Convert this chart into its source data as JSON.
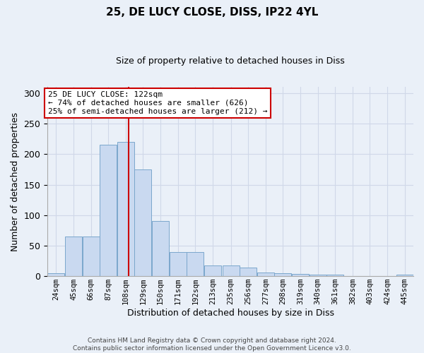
{
  "title1": "25, DE LUCY CLOSE, DISS, IP22 4YL",
  "title2": "Size of property relative to detached houses in Diss",
  "xlabel": "Distribution of detached houses by size in Diss",
  "ylabel": "Number of detached properties",
  "bin_labels": [
    "24sqm",
    "45sqm",
    "66sqm",
    "87sqm",
    "108sqm",
    "129sqm",
    "150sqm",
    "171sqm",
    "192sqm",
    "213sqm",
    "235sqm",
    "256sqm",
    "277sqm",
    "298sqm",
    "319sqm",
    "340sqm",
    "361sqm",
    "382sqm",
    "403sqm",
    "424sqm",
    "445sqm"
  ],
  "bin_values": [
    5,
    65,
    65,
    215,
    220,
    175,
    90,
    40,
    40,
    18,
    18,
    14,
    6,
    5,
    4,
    2,
    2,
    0,
    0,
    0,
    2
  ],
  "bar_color": "#c9d9f0",
  "bar_edge_color": "#7ba7cc",
  "grid_color": "#d0d8e8",
  "bg_color": "#eaf0f8",
  "property_line_x": 122,
  "property_line_color": "#cc0000",
  "annotation_text": "25 DE LUCY CLOSE: 122sqm\n← 74% of detached houses are smaller (626)\n25% of semi-detached houses are larger (212) →",
  "annotation_box_color": "#ffffff",
  "annotation_box_edge": "#cc0000",
  "ylim": [
    0,
    310
  ],
  "yticks": [
    0,
    50,
    100,
    150,
    200,
    250,
    300
  ],
  "bin_width": 21
}
